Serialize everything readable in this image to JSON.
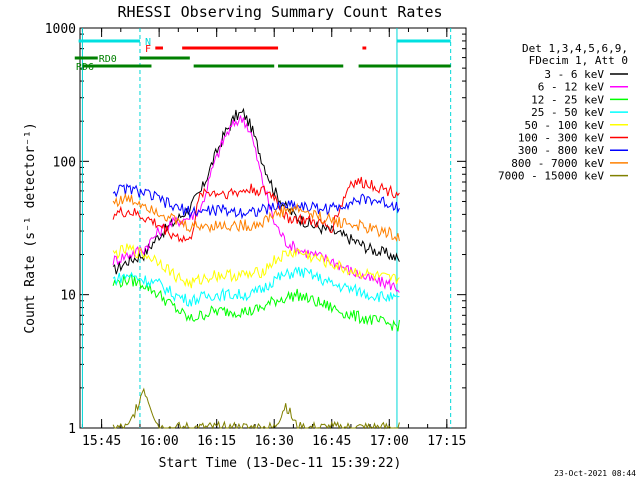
{
  "chart_data": {
    "type": "line",
    "title": "RHESSI Observing Summary Count Rates",
    "xlabel": "Start Time (13-Dec-11 15:39:22)",
    "ylabel": "Count Rate (s⁻¹ detector⁻¹)",
    "yscale": "log",
    "ylim": [
      1,
      1000
    ],
    "xlim": [
      "15:39:22",
      "17:20:00"
    ],
    "y_ticks": [
      "1",
      "10",
      "100",
      "1000"
    ],
    "x_ticks": [
      "15:45",
      "16:00",
      "16:15",
      "16:30",
      "16:45",
      "17:00",
      "17:15"
    ],
    "legend_header": [
      "Det 1,3,4,5,6,9,",
      "FDecim 1, Att 0"
    ],
    "timestamp": "23-Oct-2021 08:44",
    "flags": {
      "N_label": "N",
      "F_label": "F",
      "RD0_label": "RD0",
      "RD6_label": "RD6",
      "N_intervals": [
        [
          "15:39",
          "15:55"
        ],
        [
          "17:02",
          "17:16"
        ]
      ],
      "F_intervals": [
        [
          "15:59",
          "16:01"
        ],
        [
          "16:06",
          "16:31"
        ],
        [
          "16:53",
          "16:54"
        ]
      ],
      "RD0_intervals": [
        [
          "15:38",
          "15:44"
        ],
        [
          "15:55",
          "16:08"
        ]
      ],
      "RD6_intervals": [
        [
          "15:40",
          "15:58"
        ],
        [
          "16:09",
          "16:30"
        ],
        [
          "16:31",
          "16:48"
        ],
        [
          "16:52",
          "17:16"
        ]
      ]
    },
    "vertical_markers": {
      "solid": [
        "15:40",
        "17:02"
      ],
      "dashed": [
        "15:55",
        "17:16"
      ]
    },
    "series": [
      {
        "name": "3 - 6 keV",
        "color": "#000000",
        "x": [
          "15:48",
          "15:52",
          "15:56",
          "16:00",
          "16:04",
          "16:08",
          "16:11",
          "16:14",
          "16:17",
          "16:20",
          "16:22",
          "16:24",
          "16:27",
          "16:30",
          "16:33",
          "16:36",
          "16:40",
          "16:45",
          "16:50",
          "16:55",
          "17:00",
          "17:03"
        ],
        "y": [
          15,
          18,
          20,
          28,
          35,
          45,
          60,
          100,
          160,
          220,
          230,
          180,
          100,
          60,
          45,
          38,
          33,
          30,
          26,
          22,
          20,
          18
        ]
      },
      {
        "name": "6 - 12 keV",
        "color": "#ff00ff",
        "x": [
          "15:48",
          "15:52",
          "15:56",
          "16:00",
          "16:04",
          "16:08",
          "16:11",
          "16:14",
          "16:17",
          "16:20",
          "16:22",
          "16:24",
          "16:27",
          "16:30",
          "16:33",
          "16:36",
          "16:40",
          "16:45",
          "16:50",
          "16:55",
          "17:00",
          "17:03"
        ],
        "y": [
          18,
          20,
          22,
          30,
          35,
          38,
          45,
          90,
          150,
          200,
          210,
          160,
          70,
          35,
          25,
          22,
          20,
          18,
          15,
          13,
          12,
          11
        ]
      },
      {
        "name": "12 - 25 keV",
        "color": "#00ff00",
        "x": [
          "15:48",
          "15:52",
          "15:56",
          "16:00",
          "16:04",
          "16:08",
          "16:11",
          "16:14",
          "16:17",
          "16:20",
          "16:22",
          "16:24",
          "16:27",
          "16:30",
          "16:33",
          "16:36",
          "16:40",
          "16:45",
          "16:50",
          "16:55",
          "17:00",
          "17:03"
        ],
        "y": [
          12,
          13,
          12,
          10,
          8,
          6.5,
          7,
          7.5,
          7.5,
          7.5,
          7.5,
          7.5,
          8,
          9,
          9.5,
          10,
          9,
          8,
          7,
          6.5,
          6,
          5.8
        ]
      },
      {
        "name": "25 - 50 keV",
        "color": "#00ffff",
        "x": [
          "15:48",
          "15:52",
          "15:56",
          "16:00",
          "16:04",
          "16:08",
          "16:11",
          "16:14",
          "16:17",
          "16:20",
          "16:22",
          "16:24",
          "16:27",
          "16:30",
          "16:33",
          "16:36",
          "16:40",
          "16:45",
          "16:50",
          "16:55",
          "17:00",
          "17:03"
        ],
        "y": [
          13,
          14,
          13,
          12,
          10,
          9,
          9.5,
          10,
          10,
          10,
          10,
          10,
          11,
          13,
          14,
          15,
          14,
          12,
          11,
          10,
          9.5,
          9
        ]
      },
      {
        "name": "50 - 100 keV",
        "color": "#ffff00",
        "x": [
          "15:48",
          "15:52",
          "15:56",
          "16:00",
          "16:04",
          "16:08",
          "16:11",
          "16:14",
          "16:17",
          "16:20",
          "16:22",
          "16:24",
          "16:27",
          "16:30",
          "16:33",
          "16:36",
          "16:40",
          "16:45",
          "16:50",
          "16:55",
          "17:00",
          "17:03"
        ],
        "y": [
          20,
          22,
          20,
          18,
          14,
          12,
          13,
          14,
          14,
          14,
          14,
          14,
          15,
          18,
          20,
          21,
          19,
          17,
          15,
          14,
          13,
          13
        ]
      },
      {
        "name": "100 - 300 keV",
        "color": "#ff0000",
        "x": [
          "15:48",
          "15:52",
          "15:56",
          "16:00",
          "16:04",
          "16:08",
          "16:11",
          "16:14",
          "16:17",
          "16:20",
          "16:22",
          "16:24",
          "16:27",
          "16:30",
          "16:33",
          "16:36",
          "16:40",
          "16:45",
          "16:50",
          "16:55",
          "17:00",
          "17:03"
        ],
        "y": [
          40,
          42,
          38,
          33,
          28,
          25,
          60,
          58,
          58,
          58,
          60,
          62,
          60,
          55,
          38,
          37,
          35,
          32,
          70,
          68,
          60,
          58
        ]
      },
      {
        "name": "300 - 800 keV",
        "color": "#0000ff",
        "x": [
          "15:48",
          "15:52",
          "15:56",
          "16:00",
          "16:04",
          "16:08",
          "16:11",
          "16:14",
          "16:17",
          "16:20",
          "16:22",
          "16:24",
          "16:27",
          "16:30",
          "16:33",
          "16:36",
          "16:40",
          "16:45",
          "16:50",
          "16:55",
          "17:00",
          "17:03"
        ],
        "y": [
          60,
          62,
          58,
          52,
          45,
          42,
          42,
          43,
          43,
          42,
          42,
          42,
          43,
          45,
          48,
          47,
          45,
          44,
          50,
          52,
          48,
          46
        ]
      },
      {
        "name": "800 - 7000 keV",
        "color": "#ff8000",
        "x": [
          "15:48",
          "15:52",
          "15:56",
          "16:00",
          "16:04",
          "16:08",
          "16:11",
          "16:14",
          "16:17",
          "16:20",
          "16:22",
          "16:24",
          "16:27",
          "16:30",
          "16:33",
          "16:36",
          "16:40",
          "16:45",
          "16:50",
          "16:55",
          "17:00",
          "17:03"
        ],
        "y": [
          50,
          52,
          48,
          42,
          36,
          32,
          33,
          33,
          33,
          33,
          33,
          33,
          35,
          40,
          43,
          44,
          40,
          36,
          34,
          31,
          29,
          27
        ]
      },
      {
        "name": "7000 - 15000 keV",
        "color": "#808000",
        "x": [
          "15:48",
          "15:52",
          "15:56",
          "16:00",
          "16:04",
          "16:08",
          "16:11",
          "16:14",
          "16:17",
          "16:20",
          "16:22",
          "16:24",
          "16:27",
          "16:30",
          "16:33",
          "16:36",
          "16:40",
          "16:45",
          "16:50",
          "16:55",
          "17:00",
          "17:03"
        ],
        "y": [
          1,
          1,
          2,
          1,
          1,
          1,
          1,
          1,
          1,
          1,
          1,
          1,
          1,
          1,
          1.5,
          1,
          1,
          1,
          1,
          1,
          1,
          1
        ]
      }
    ]
  }
}
